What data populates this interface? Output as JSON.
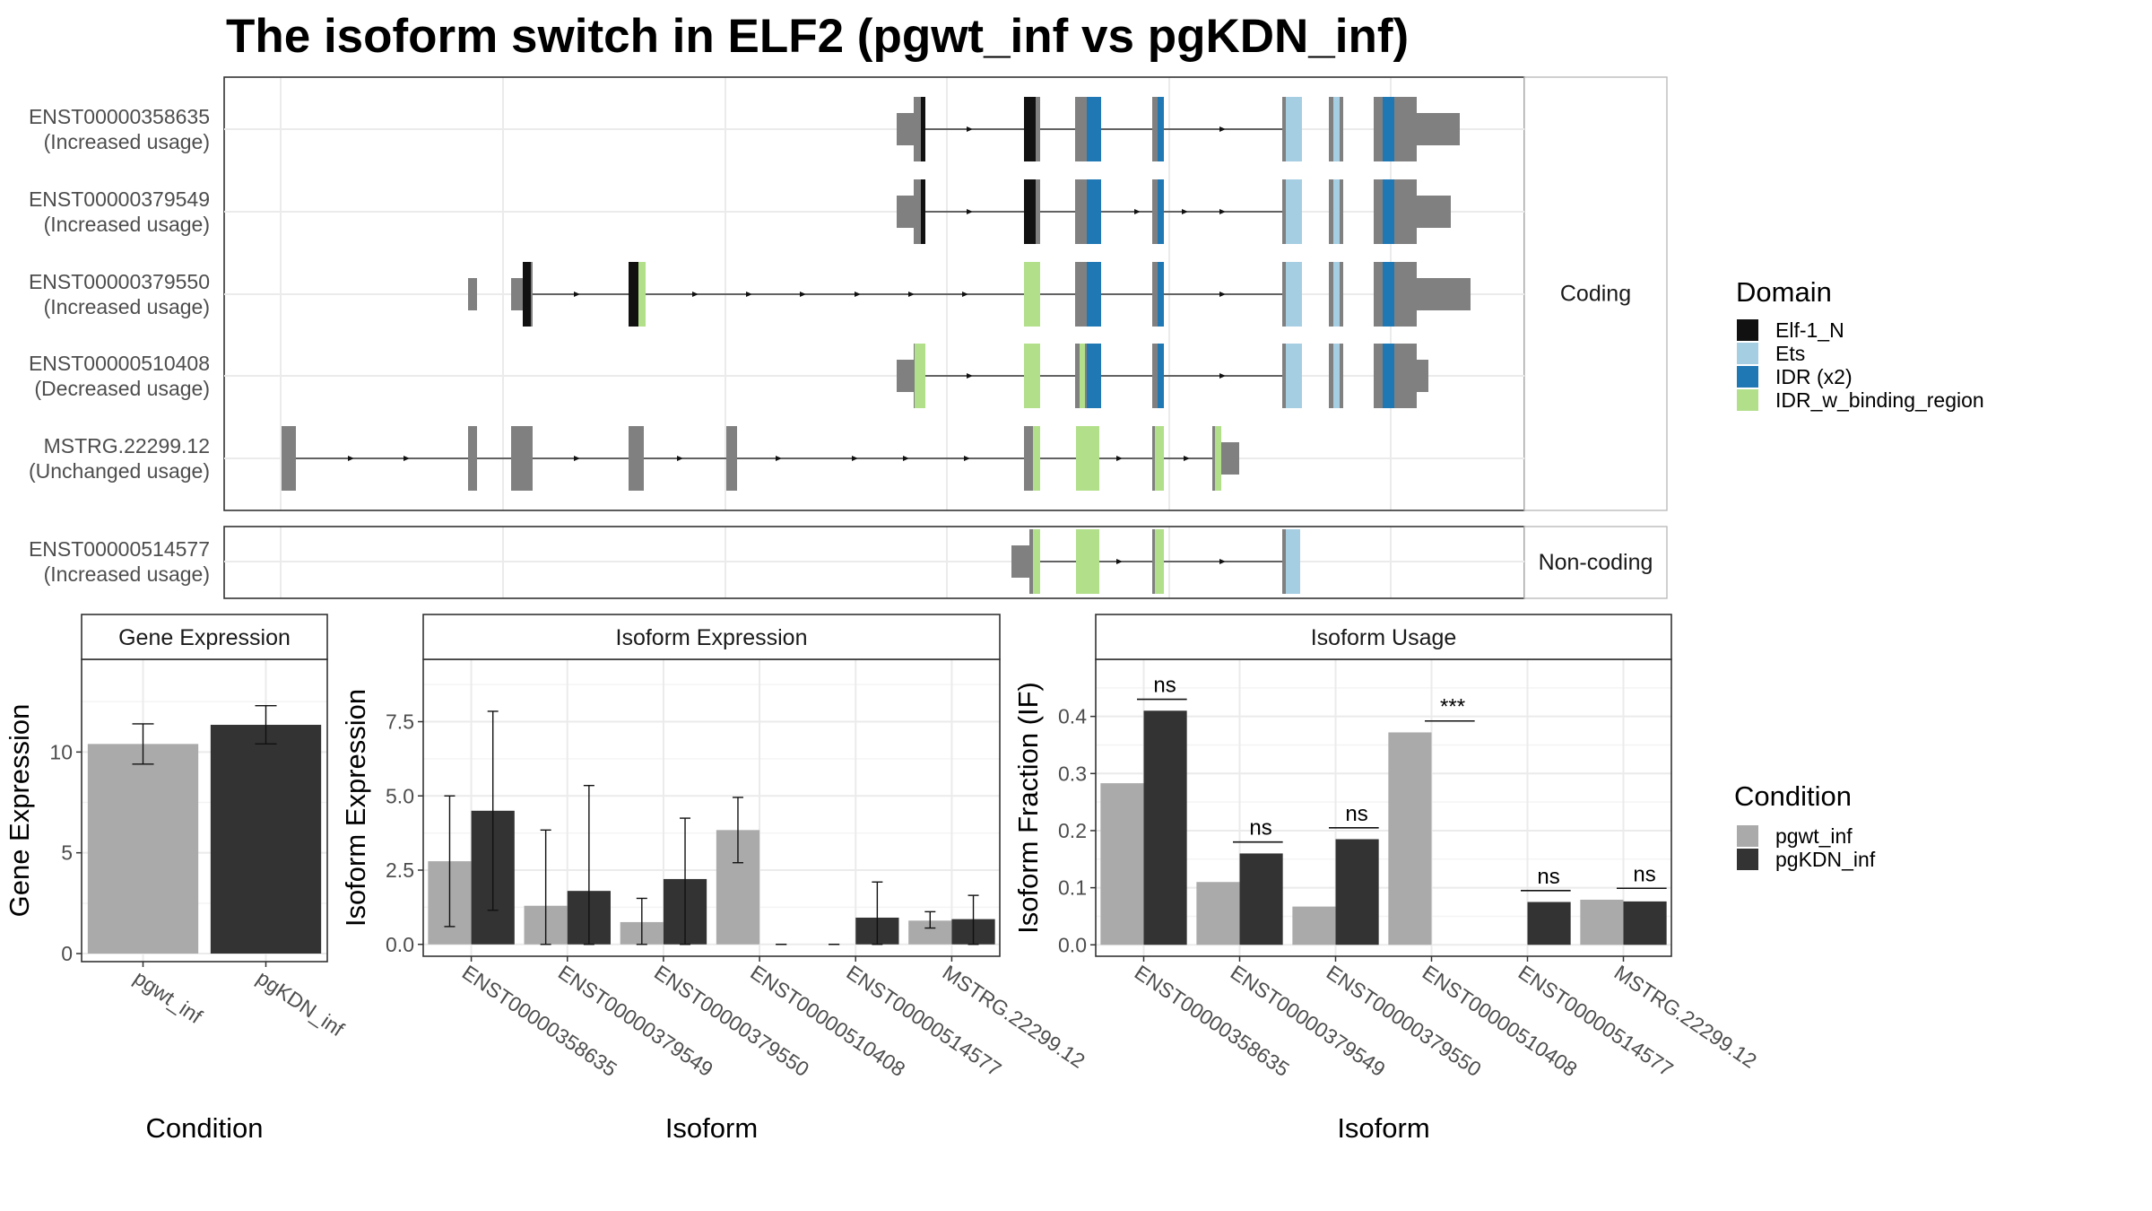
{
  "title": "The isoform switch in ELF2 (pgwt_inf vs pgKDN_inf)",
  "colors": {
    "Elf-1_N": "#111111",
    "Ets": "#a6cee3",
    "IDR (x2)": "#1f78b4",
    "IDR_w_binding_region": "#b2df8a",
    "exon": "#808080",
    "pgwt_inf": "#aaaaaa",
    "pgKDN_inf": "#333333",
    "grid": "#ebebeb",
    "panel_border": "#333333",
    "strip_fill": "#ffffff"
  },
  "transcripts": {
    "coding_strip": "Coding",
    "noncoding_strip": "Non-coding",
    "coding": [
      {
        "id": "ENST00000358635",
        "usage": "(Increased usage)"
      },
      {
        "id": "ENST00000379549",
        "usage": "(Increased usage)"
      },
      {
        "id": "ENST00000379550",
        "usage": "(Increased usage)"
      },
      {
        "id": "ENST00000510408",
        "usage": "(Decreased usage)"
      },
      {
        "id": "MSTRG.22299.12",
        "usage": "(Unchanged usage)"
      }
    ],
    "noncoding": [
      {
        "id": "ENST00000514577",
        "usage": "(Increased usage)"
      }
    ]
  },
  "legend_domain": {
    "title": "Domain",
    "items": [
      {
        "label": "Elf-1_N",
        "color": "#111111"
      },
      {
        "label": "Ets",
        "color": "#a6cee3"
      },
      {
        "label": "IDR (x2)",
        "color": "#1f78b4"
      },
      {
        "label": "IDR_w_binding_region",
        "color": "#b2df8a"
      }
    ]
  },
  "legend_condition": {
    "title": "Condition",
    "items": [
      {
        "label": "pgwt_inf",
        "color": "#aaaaaa"
      },
      {
        "label": "pgKDN_inf",
        "color": "#333333"
      }
    ]
  },
  "chart_data": [
    {
      "type": "bar",
      "title": "Gene Expression",
      "xlabel": "Condition",
      "ylabel": "Gene Expression",
      "ylim": [
        -0.4,
        14.6
      ],
      "yticks": [
        0,
        5,
        10
      ],
      "categories": [
        "pgwt_inf",
        "pgKDN_inf"
      ],
      "values": [
        10.4,
        11.35
      ],
      "error_low": [
        9.4,
        10.4
      ],
      "error_high": [
        11.4,
        12.3
      ],
      "grid": true
    },
    {
      "type": "bar",
      "title": "Isoform Expression",
      "xlabel": "Isoform",
      "ylabel": "Isoform Expression",
      "ylim": [
        -0.4,
        9.6
      ],
      "yticks": [
        0.0,
        2.5,
        5.0,
        7.5
      ],
      "categories": [
        "ENST00000358635",
        "ENST00000379549",
        "ENST00000379550",
        "ENST00000510408",
        "ENST00000514577",
        "MSTRG.22299.12"
      ],
      "series": [
        {
          "name": "pgwt_inf",
          "values": [
            2.8,
            1.3,
            0.75,
            3.85,
            0.0,
            0.8
          ],
          "error_low": [
            0.6,
            0.0,
            0.0,
            2.75,
            0.0,
            0.55
          ],
          "error_high": [
            5.0,
            3.85,
            1.55,
            4.95,
            0.0,
            1.1
          ]
        },
        {
          "name": "pgKDN_inf",
          "values": [
            4.5,
            1.8,
            2.2,
            0.0,
            0.9,
            0.85
          ],
          "error_low": [
            1.15,
            0.0,
            0.0,
            0.0,
            0.0,
            0.0
          ],
          "error_high": [
            7.85,
            5.35,
            4.25,
            0.0,
            2.1,
            1.65
          ]
        }
      ],
      "grid": true
    },
    {
      "type": "bar",
      "title": "Isoform Usage",
      "xlabel": "Isoform",
      "ylabel": "Isoform Fraction (IF)",
      "ylim": [
        -0.02,
        0.5
      ],
      "yticks": [
        0.0,
        0.1,
        0.2,
        0.3,
        0.4
      ],
      "categories": [
        "ENST00000358635",
        "ENST00000379549",
        "ENST00000379550",
        "ENST00000510408",
        "ENST00000514577",
        "MSTRG.22299.12"
      ],
      "series": [
        {
          "name": "pgwt_inf",
          "values": [
            0.283,
            0.11,
            0.067,
            0.372,
            0.0,
            0.079
          ]
        },
        {
          "name": "pgKDN_inf",
          "values": [
            0.41,
            0.16,
            0.185,
            0.0,
            0.075,
            0.076
          ]
        }
      ],
      "significance": [
        "ns",
        "ns",
        "ns",
        "***",
        "ns",
        "ns"
      ],
      "sig_y": [
        0.43,
        0.18,
        0.205,
        0.392,
        0.095,
        0.099
      ],
      "grid": true
    }
  ]
}
